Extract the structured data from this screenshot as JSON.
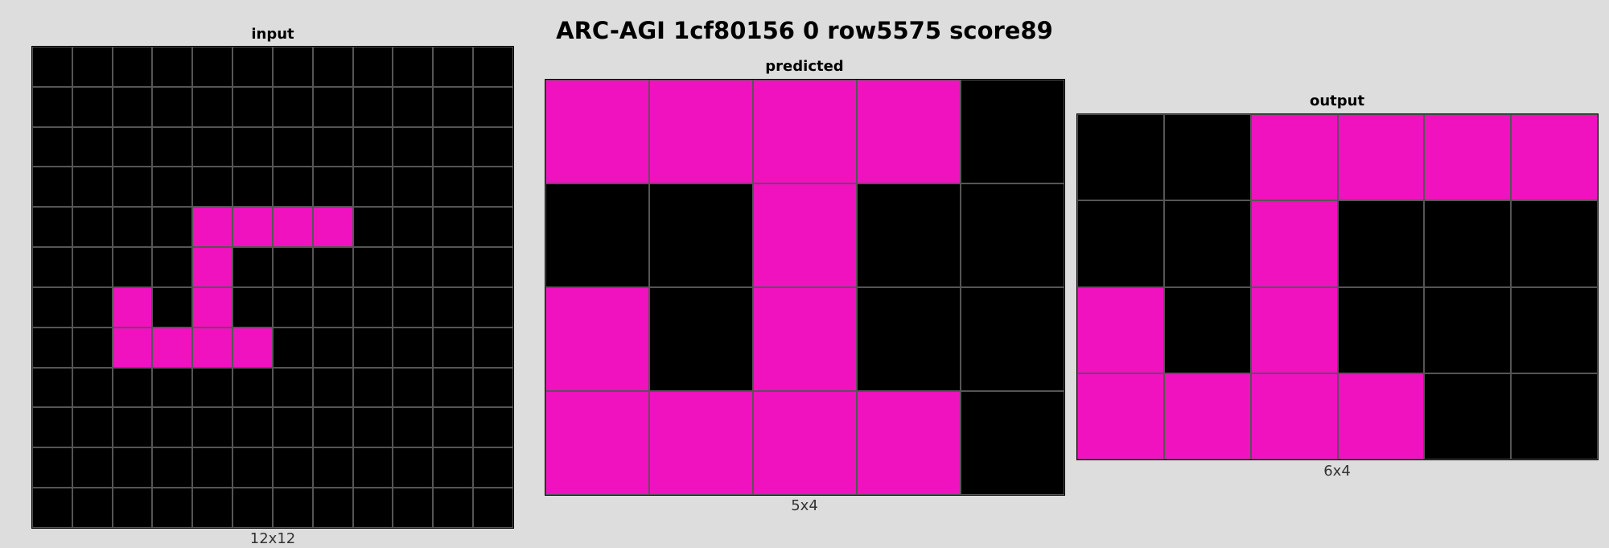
{
  "title": "ARC-AGI 1cf80156 0 row5575 score89",
  "colors": {
    "0": "#000000",
    "6": "#f012be",
    "background": "#dddddd",
    "gridline": "#555555"
  },
  "panels": [
    {
      "id": "input",
      "label": "input",
      "size_label": "12x12",
      "grid": [
        [
          0,
          0,
          0,
          0,
          0,
          0,
          0,
          0,
          0,
          0,
          0,
          0
        ],
        [
          0,
          0,
          0,
          0,
          0,
          0,
          0,
          0,
          0,
          0,
          0,
          0
        ],
        [
          0,
          0,
          0,
          0,
          0,
          0,
          0,
          0,
          0,
          0,
          0,
          0
        ],
        [
          0,
          0,
          0,
          0,
          0,
          0,
          0,
          0,
          0,
          0,
          0,
          0
        ],
        [
          0,
          0,
          0,
          0,
          6,
          6,
          6,
          6,
          0,
          0,
          0,
          0
        ],
        [
          0,
          0,
          0,
          0,
          6,
          0,
          0,
          0,
          0,
          0,
          0,
          0
        ],
        [
          0,
          0,
          6,
          0,
          6,
          0,
          0,
          0,
          0,
          0,
          0,
          0
        ],
        [
          0,
          0,
          6,
          6,
          6,
          6,
          0,
          0,
          0,
          0,
          0,
          0
        ],
        [
          0,
          0,
          0,
          0,
          0,
          0,
          0,
          0,
          0,
          0,
          0,
          0
        ],
        [
          0,
          0,
          0,
          0,
          0,
          0,
          0,
          0,
          0,
          0,
          0,
          0
        ],
        [
          0,
          0,
          0,
          0,
          0,
          0,
          0,
          0,
          0,
          0,
          0,
          0
        ],
        [
          0,
          0,
          0,
          0,
          0,
          0,
          0,
          0,
          0,
          0,
          0,
          0
        ]
      ]
    },
    {
      "id": "predicted",
      "label": "predicted",
      "size_label": "5x4",
      "grid": [
        [
          6,
          6,
          6,
          6,
          0
        ],
        [
          0,
          0,
          6,
          0,
          0
        ],
        [
          6,
          0,
          6,
          0,
          0
        ],
        [
          6,
          6,
          6,
          6,
          0
        ]
      ]
    },
    {
      "id": "output",
      "label": "output",
      "size_label": "6x4",
      "grid": [
        [
          0,
          0,
          6,
          6,
          6,
          6
        ],
        [
          0,
          0,
          6,
          0,
          0,
          0
        ],
        [
          6,
          0,
          6,
          0,
          0,
          0
        ],
        [
          6,
          6,
          6,
          6,
          0,
          0
        ]
      ]
    }
  ]
}
